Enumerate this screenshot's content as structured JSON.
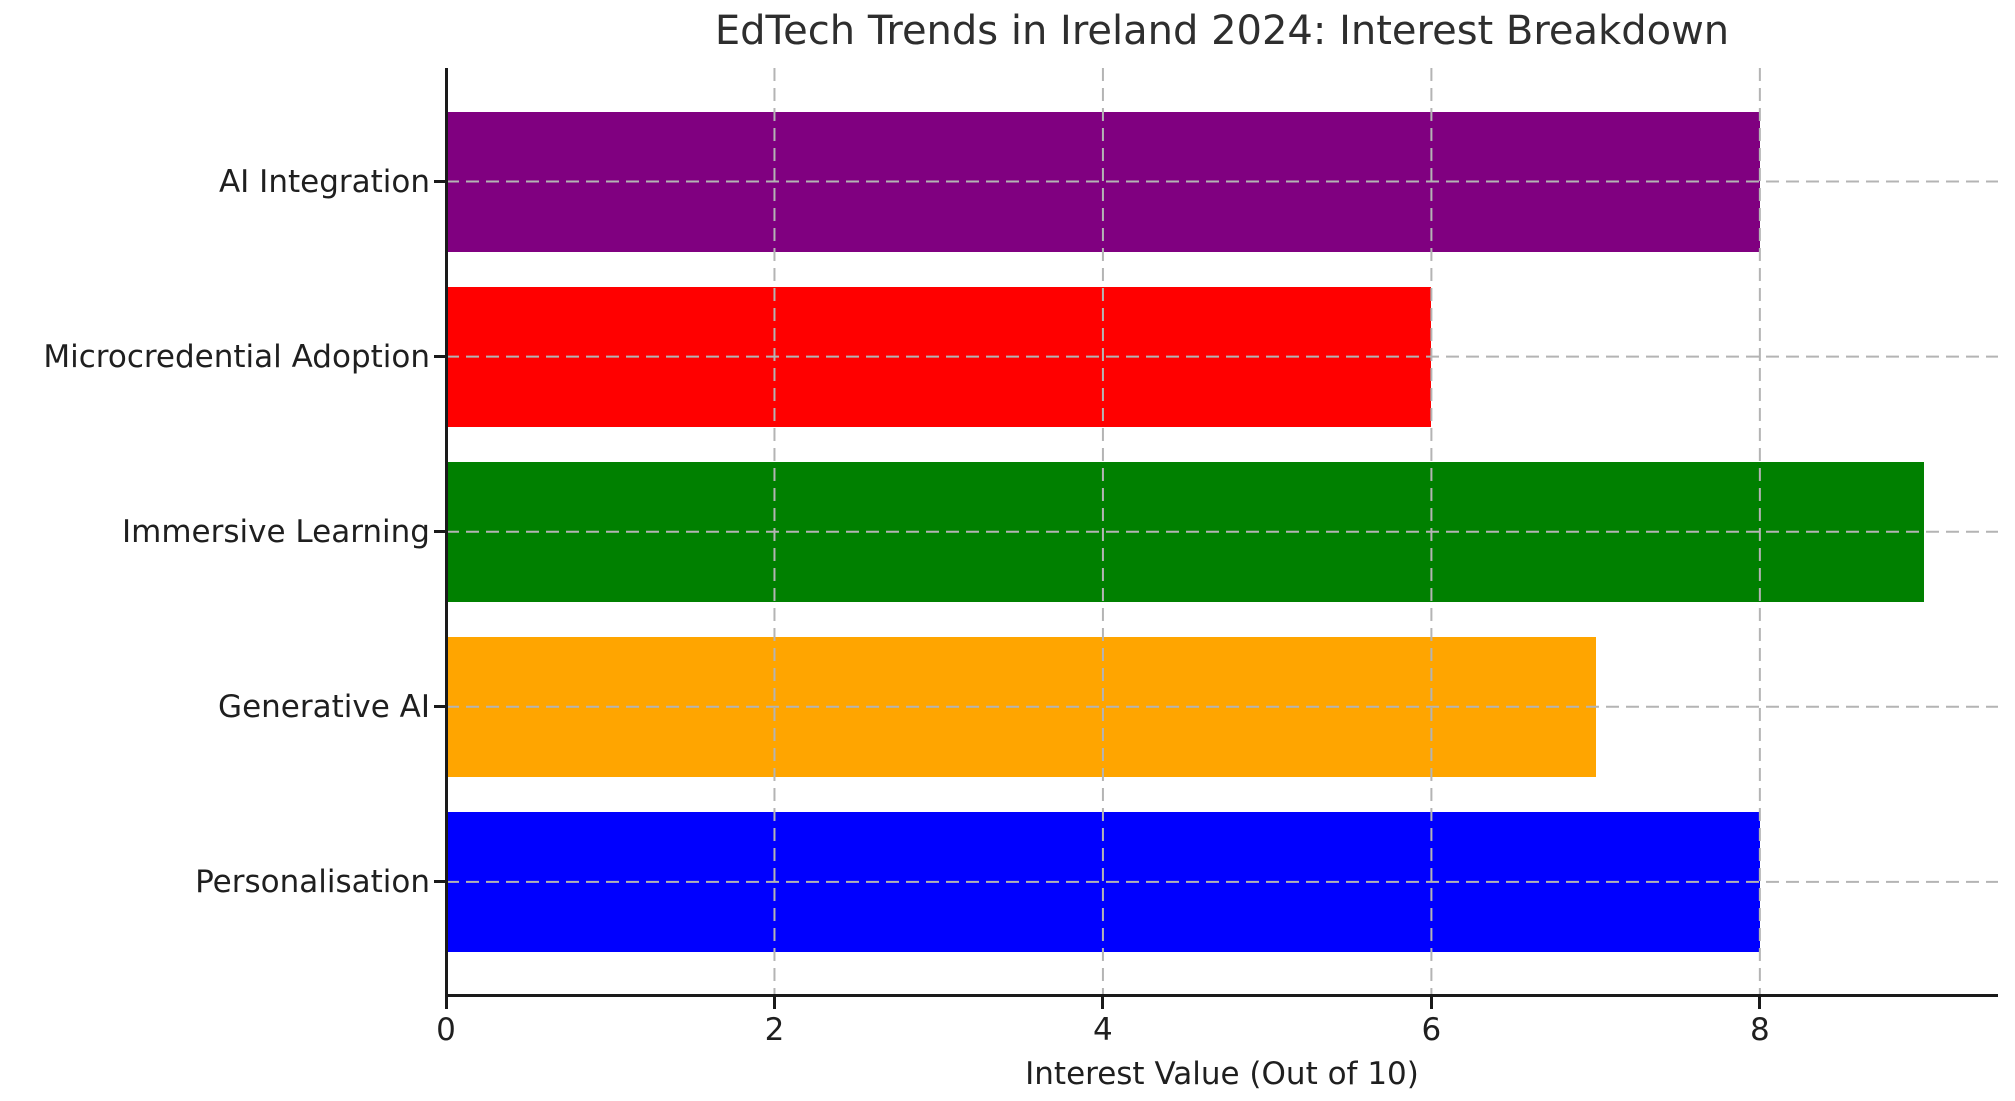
{
  "chart_data": {
    "type": "bar",
    "orientation": "horizontal",
    "title": "EdTech Trends in Ireland 2024: Interest Breakdown",
    "xlabel": "Interest Value (Out of 10)",
    "ylabel": "",
    "categories": [
      "AI Integration",
      "Microcredential Adoption",
      "Immersive Learning",
      "Generative AI",
      "Personalisation"
    ],
    "values": [
      8,
      6,
      9,
      7,
      8
    ],
    "bar_colors": [
      "#800080",
      "#ff0000",
      "#008000",
      "#ffa500",
      "#0000ff"
    ],
    "xticks": [
      0,
      2,
      4,
      6,
      8
    ],
    "xtick_labels": [
      "0",
      "2",
      "4",
      "6",
      "8"
    ],
    "xlim": [
      0,
      9.45
    ],
    "legend_position": "none",
    "grid": "dashed gridlines on both axes, drawn over bars",
    "grid_color": "#b4b4b4",
    "axis_color": "#1a1a1a",
    "text_color": "#1f1f1f",
    "background_color": "#ffffff"
  }
}
